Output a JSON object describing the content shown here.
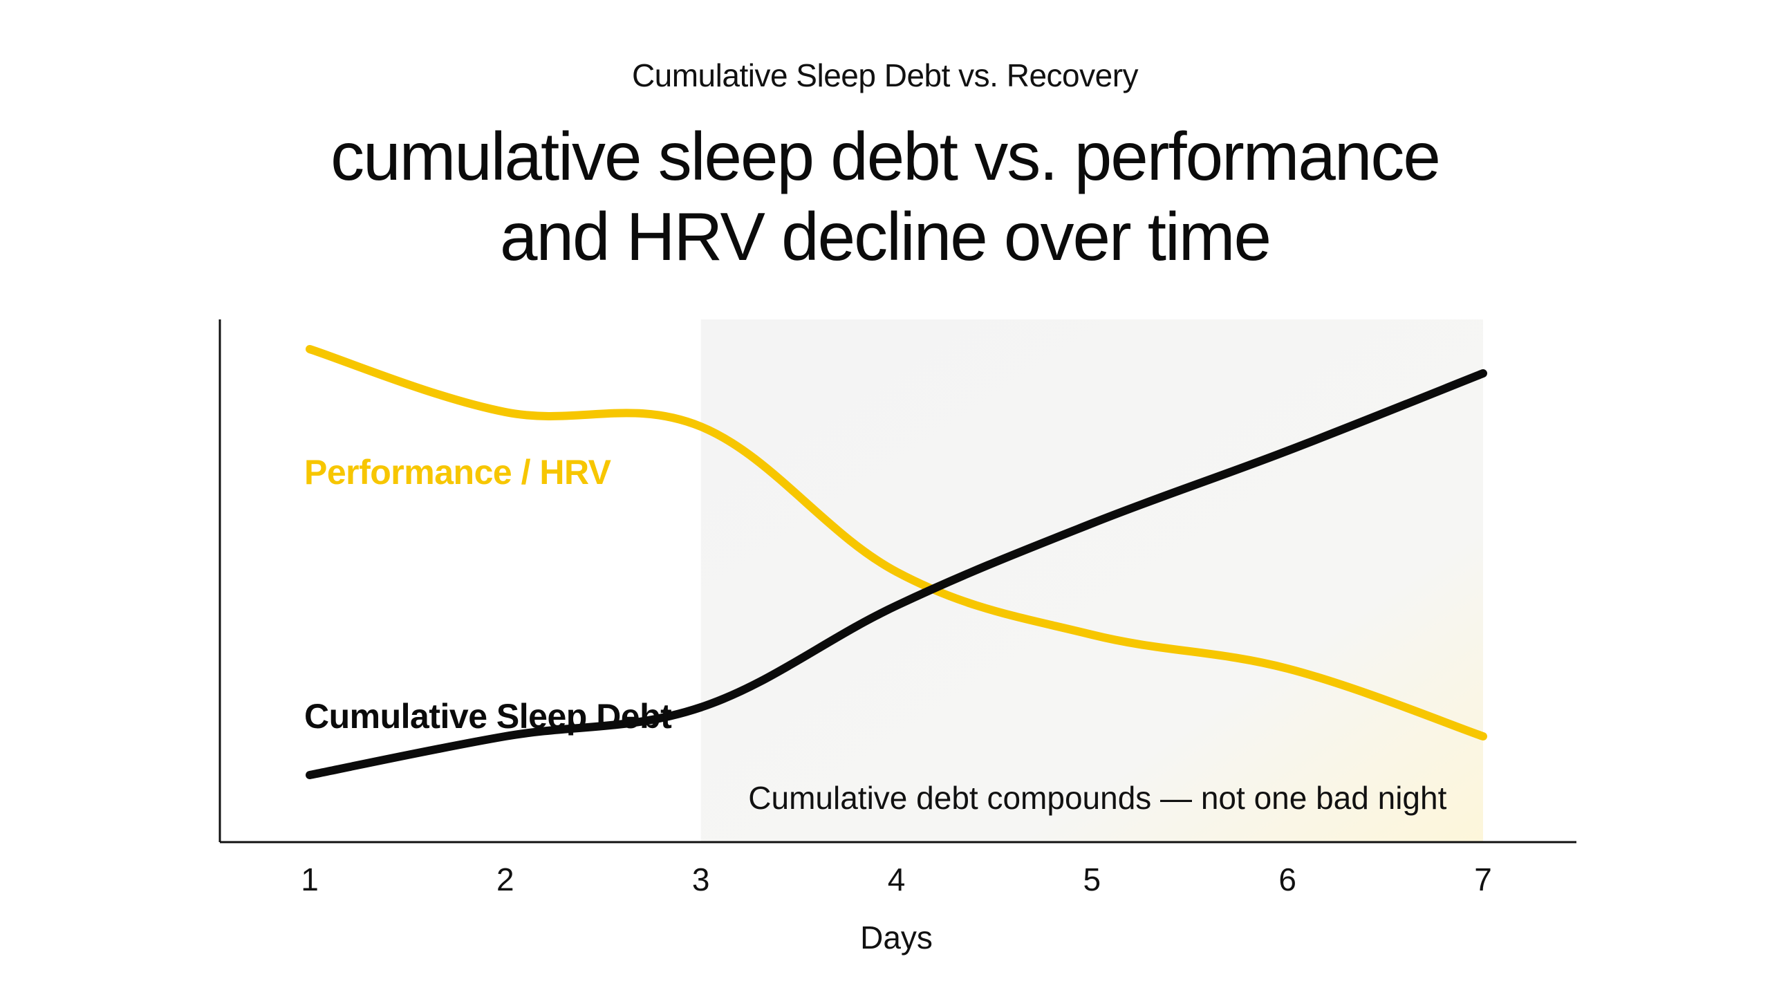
{
  "eyebrow": "Cumulative Sleep Debt vs. Recovery",
  "headline": {
    "line1": "cumulative sleep debt vs. performance",
    "line2": "and HRV decline over time"
  },
  "colors": {
    "performance": "#F7C600",
    "debt": "#0B0B0B",
    "shade": "#F3F3F3",
    "axis": "#111111"
  },
  "chart_data": {
    "type": "line",
    "title": "cumulative sleep debt vs. performance and HRV decline over time",
    "xlabel": "Days",
    "ylabel": "",
    "x": [
      1,
      2,
      3,
      4,
      5,
      6,
      7
    ],
    "xlim": [
      1,
      7
    ],
    "ylim": [
      0,
      100
    ],
    "grid": false,
    "series": [
      {
        "name": "Performance / HRV",
        "color": "#F7C600",
        "values": [
          95,
          82,
          79,
          49,
          36,
          29,
          15
        ]
      },
      {
        "name": "Cumulative Sleep Debt",
        "color": "#0B0B0B",
        "values": [
          7,
          15,
          21,
          42,
          59,
          74,
          90
        ]
      }
    ],
    "shaded_region": {
      "x_start": 3,
      "x_end": 7,
      "label": "Cumulative debt compounds — not one bad night"
    }
  }
}
